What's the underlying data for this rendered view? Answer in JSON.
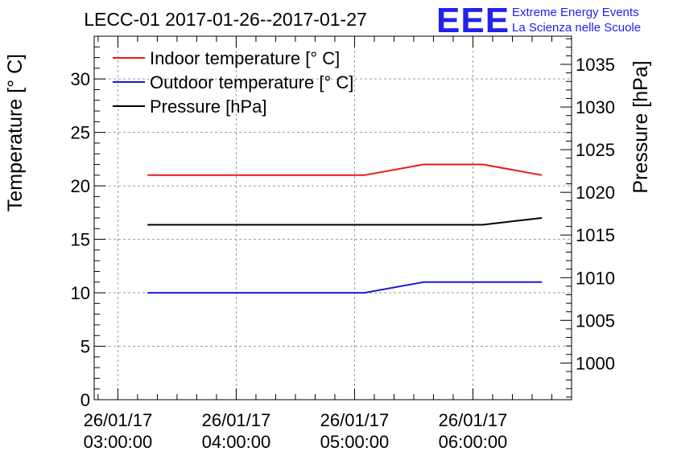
{
  "chart_data": {
    "type": "line",
    "title": "LECC-01 2017-01-26--2017-01-27",
    "ylabel": "Temperature [° C]",
    "y2label": "Pressure [hPa]",
    "ylim": [
      0,
      34
    ],
    "y2lim": [
      995.7,
      1038.3
    ],
    "yticks": [
      0,
      5,
      10,
      15,
      20,
      25,
      30
    ],
    "y2ticks": [
      1000,
      1005,
      1010,
      1015,
      1020,
      1025,
      1030,
      1035
    ],
    "xlim": [
      "2017-01-26 02:48:00",
      "2017-01-26 06:50:00"
    ],
    "xticks": [
      {
        "time": "2017-01-26 03:00:00",
        "date": "26/01/17",
        "clock": "03:00:00"
      },
      {
        "time": "2017-01-26 04:00:00",
        "date": "26/01/17",
        "clock": "04:00:00"
      },
      {
        "time": "2017-01-26 05:00:00",
        "date": "26/01/17",
        "clock": "05:00:00"
      },
      {
        "time": "2017-01-26 06:00:00",
        "date": "26/01/17",
        "clock": "06:00:00"
      }
    ],
    "grid": true,
    "legend_position": "top-left",
    "series": [
      {
        "name": "Indoor temperature [° C]",
        "color": "#e8191c",
        "axis": "left",
        "x": [
          "2017-01-26 03:15:00",
          "2017-01-26 05:05:00",
          "2017-01-26 05:35:00",
          "2017-01-26 06:05:00",
          "2017-01-26 06:35:00"
        ],
        "y": [
          21,
          21,
          22,
          22,
          21
        ]
      },
      {
        "name": "Outdoor temperature [° C]",
        "color": "#1a1ad4",
        "axis": "left",
        "x": [
          "2017-01-26 03:15:00",
          "2017-01-26 05:05:00",
          "2017-01-26 05:35:00",
          "2017-01-26 06:05:00",
          "2017-01-26 06:35:00"
        ],
        "y": [
          10,
          10,
          11,
          11,
          11
        ]
      },
      {
        "name": "Pressure [hPa]",
        "color": "#000000",
        "axis": "right",
        "x": [
          "2017-01-26 03:15:00",
          "2017-01-26 05:05:00",
          "2017-01-26 05:35:00",
          "2017-01-26 06:05:00",
          "2017-01-26 06:35:00"
        ],
        "y": [
          1016.2,
          1016.2,
          1016.2,
          1016.2,
          1017
        ]
      }
    ]
  },
  "logo": {
    "text": "EEE",
    "line1": "Extreme Energy Events",
    "line2": "La Scienza nelle Scuole",
    "color": "#2222ee"
  }
}
